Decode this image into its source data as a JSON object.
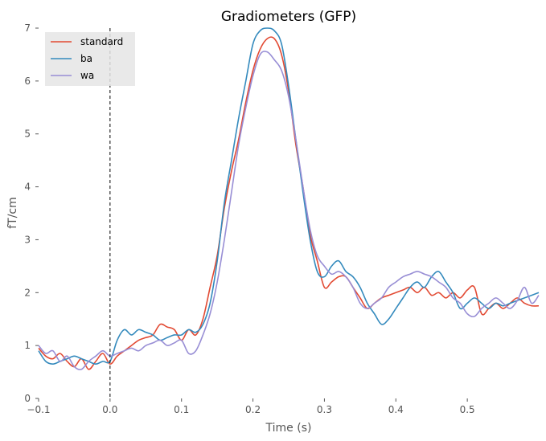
{
  "chart_data": {
    "type": "line",
    "title": "Gradiometers (GFP)",
    "xlabel": "Time (s)",
    "ylabel": "fT/cm",
    "xlim": [
      -0.1,
      0.6
    ],
    "ylim": [
      0,
      7
    ],
    "xticks": [
      -0.1,
      0.0,
      0.1,
      0.2,
      0.3,
      0.4,
      0.5
    ],
    "xtick_labels": [
      "−0.1",
      "0.0",
      "0.1",
      "0.2",
      "0.3",
      "0.4",
      "0.5"
    ],
    "yticks": [
      0,
      1,
      2,
      3,
      4,
      5,
      6,
      7
    ],
    "ytick_labels": [
      "0",
      "1",
      "2",
      "3",
      "4",
      "5",
      "6",
      "7"
    ],
    "grid": false,
    "legend_position": "top-left",
    "vline": {
      "x": 0.0,
      "style": "dashed",
      "color": "#000000"
    },
    "x": [
      -0.1,
      -0.09,
      -0.08,
      -0.07,
      -0.06,
      -0.05,
      -0.04,
      -0.03,
      -0.02,
      -0.01,
      0.0,
      0.01,
      0.02,
      0.03,
      0.04,
      0.05,
      0.06,
      0.07,
      0.08,
      0.09,
      0.1,
      0.11,
      0.12,
      0.13,
      0.14,
      0.15,
      0.16,
      0.17,
      0.18,
      0.19,
      0.2,
      0.21,
      0.22,
      0.23,
      0.24,
      0.25,
      0.26,
      0.27,
      0.28,
      0.29,
      0.3,
      0.31,
      0.32,
      0.33,
      0.34,
      0.35,
      0.36,
      0.37,
      0.38,
      0.39,
      0.4,
      0.41,
      0.42,
      0.43,
      0.44,
      0.45,
      0.46,
      0.47,
      0.48,
      0.49,
      0.5,
      0.51,
      0.52,
      0.53,
      0.54,
      0.55,
      0.56,
      0.57,
      0.58,
      0.59,
      0.6
    ],
    "series": [
      {
        "name": "standard",
        "color": "#e24a33",
        "values": [
          0.95,
          0.8,
          0.75,
          0.85,
          0.7,
          0.6,
          0.75,
          0.55,
          0.7,
          0.85,
          0.65,
          0.8,
          0.9,
          1.0,
          1.1,
          1.15,
          1.2,
          1.4,
          1.35,
          1.3,
          1.1,
          1.3,
          1.2,
          1.5,
          2.1,
          2.7,
          3.6,
          4.3,
          4.9,
          5.6,
          6.2,
          6.6,
          6.8,
          6.8,
          6.5,
          5.8,
          4.8,
          4.0,
          3.1,
          2.6,
          2.1,
          2.2,
          2.3,
          2.3,
          2.1,
          1.9,
          1.7,
          1.8,
          1.9,
          1.95,
          2.0,
          2.05,
          2.1,
          2.0,
          2.1,
          1.95,
          2.0,
          1.9,
          2.0,
          1.9,
          2.05,
          2.1,
          1.6,
          1.7,
          1.8,
          1.7,
          1.8,
          1.9,
          1.8,
          1.75,
          1.75
        ]
      },
      {
        "name": "ba",
        "color": "#348abd",
        "values": [
          0.9,
          0.7,
          0.65,
          0.7,
          0.75,
          0.8,
          0.75,
          0.7,
          0.65,
          0.7,
          0.7,
          1.1,
          1.3,
          1.2,
          1.3,
          1.25,
          1.2,
          1.1,
          1.15,
          1.2,
          1.2,
          1.3,
          1.25,
          1.4,
          1.8,
          2.6,
          3.7,
          4.5,
          5.3,
          6.0,
          6.7,
          6.95,
          7.0,
          6.95,
          6.7,
          5.9,
          4.9,
          3.9,
          3.0,
          2.4,
          2.3,
          2.5,
          2.6,
          2.4,
          2.3,
          2.1,
          1.8,
          1.6,
          1.4,
          1.5,
          1.7,
          1.9,
          2.1,
          2.2,
          2.1,
          2.3,
          2.4,
          2.2,
          2.0,
          1.7,
          1.8,
          1.9,
          1.8,
          1.7,
          1.8,
          1.75,
          1.8,
          1.85,
          1.9,
          1.95,
          2.0
        ]
      },
      {
        "name": "wa",
        "color": "#988ed5",
        "values": [
          1.0,
          0.85,
          0.9,
          0.7,
          0.8,
          0.6,
          0.55,
          0.7,
          0.8,
          0.9,
          0.8,
          0.85,
          0.9,
          0.95,
          0.9,
          1.0,
          1.05,
          1.1,
          1.0,
          1.05,
          1.1,
          0.85,
          0.9,
          1.2,
          1.6,
          2.2,
          3.0,
          3.9,
          4.8,
          5.5,
          6.1,
          6.5,
          6.55,
          6.4,
          6.2,
          5.7,
          4.9,
          4.0,
          3.2,
          2.7,
          2.5,
          2.35,
          2.4,
          2.3,
          2.1,
          1.8,
          1.7,
          1.8,
          1.9,
          2.1,
          2.2,
          2.3,
          2.35,
          2.4,
          2.35,
          2.3,
          2.2,
          2.1,
          1.9,
          1.8,
          1.6,
          1.55,
          1.7,
          1.8,
          1.9,
          1.8,
          1.7,
          1.85,
          2.1,
          1.8,
          1.95
        ]
      }
    ]
  }
}
